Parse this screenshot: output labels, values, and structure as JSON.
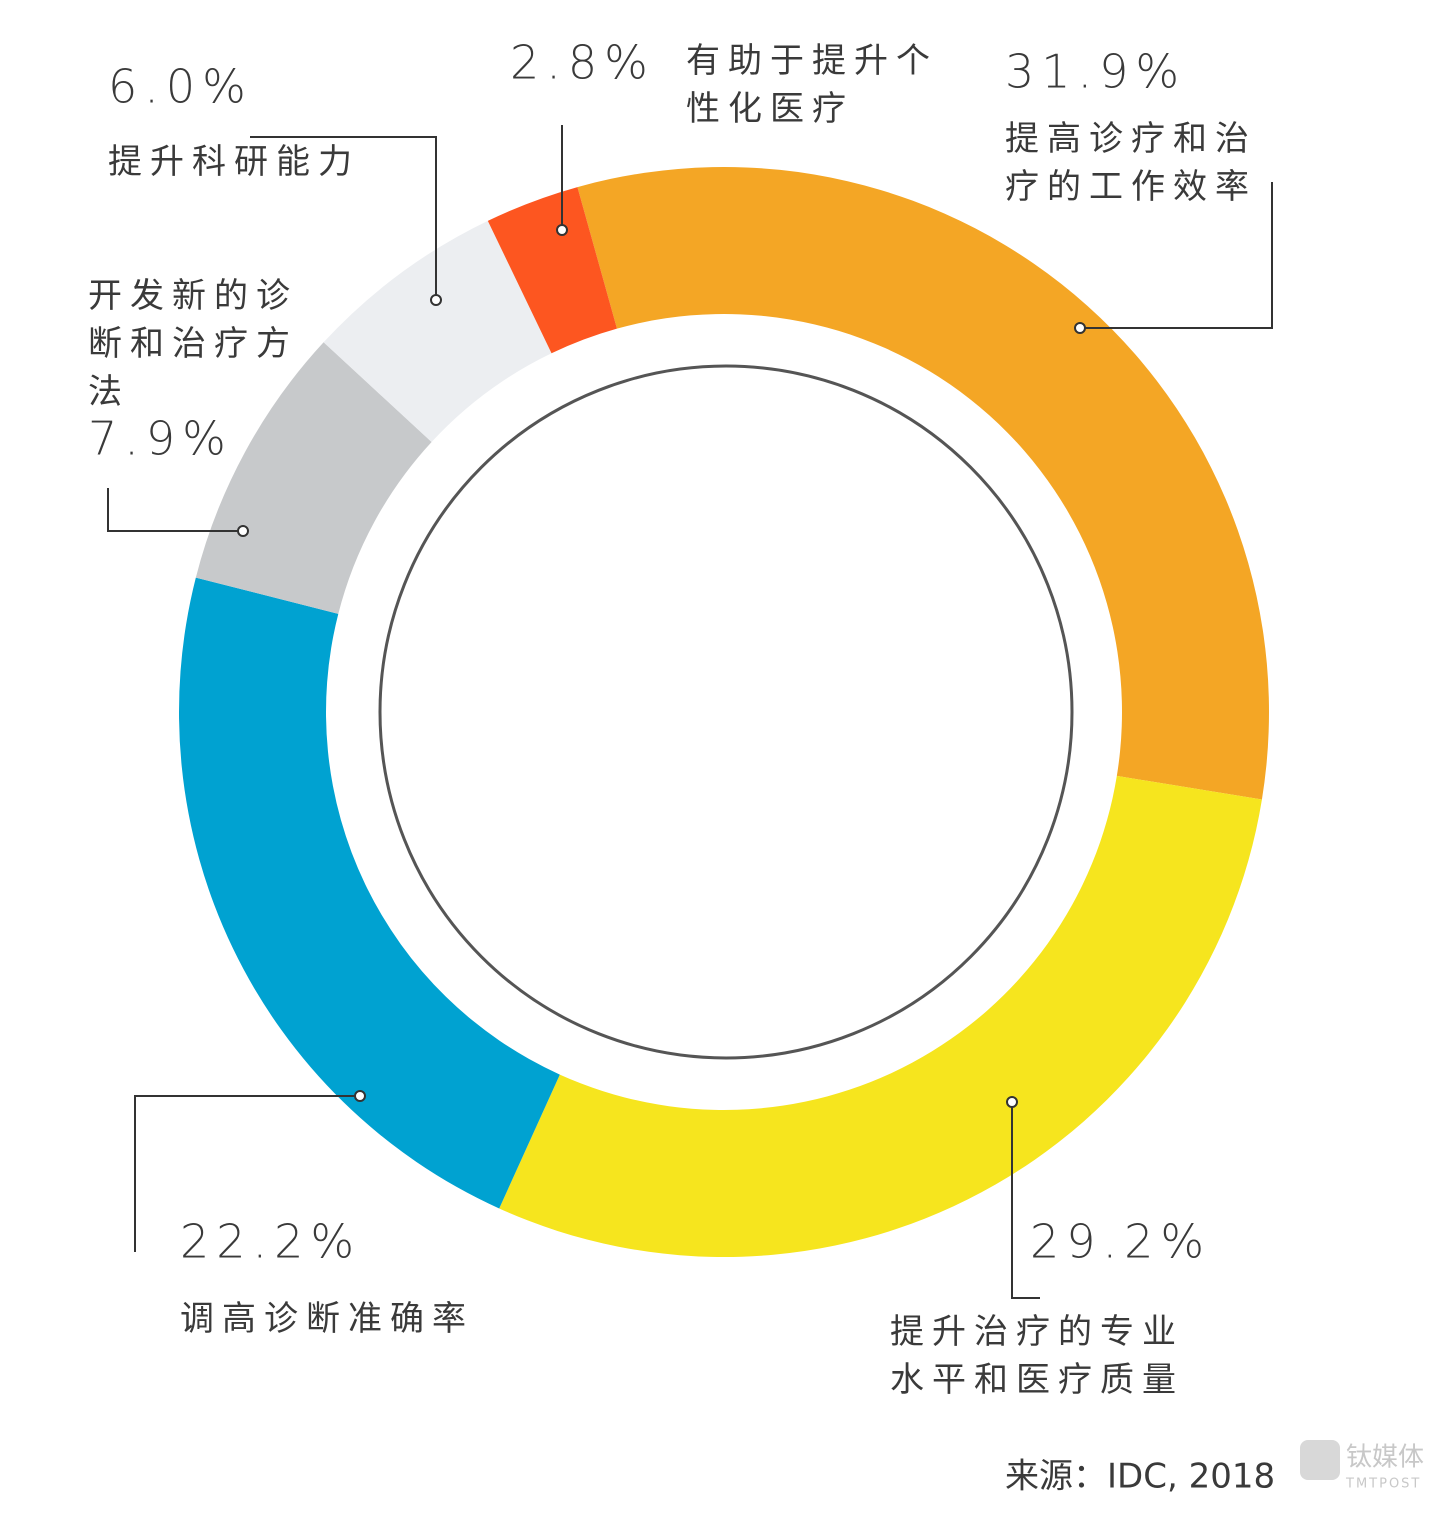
{
  "chart_data": {
    "type": "donut",
    "categories": [
      "提高诊疗和治疗的工作效率",
      "提升治疗的专业水平和医疗质量",
      "调高诊断准确率",
      "开发新的诊断和治疗方法",
      "提升科研能力",
      "有助于提升个性化医疗"
    ],
    "values": [
      31.9,
      29.2,
      22.2,
      7.9,
      6.0,
      2.8
    ],
    "value_labels": [
      "31.9%",
      "29.2%",
      "22.2%",
      "7.9%",
      "6.0%",
      "2.8%"
    ],
    "colors": [
      "#F4A625",
      "#F6E51E",
      "#00A2D1",
      "#C7C9CB",
      "#ECEEF1",
      "#FD5620"
    ],
    "source": "来源：IDC, 2018",
    "watermark": "钛媒体",
    "watermark_sub": "TMTPOST"
  }
}
